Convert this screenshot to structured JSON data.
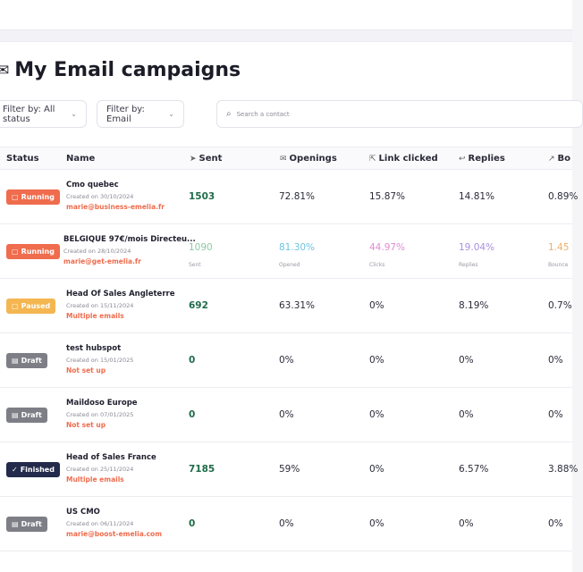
{
  "page_title": "My Email campaigns",
  "filters": {
    "status": "Filter by: All status",
    "email": "Filter by: Email"
  },
  "search": {
    "placeholder": "Search a contact"
  },
  "columns": {
    "status": "Status",
    "name": "Name",
    "sent": "Sent",
    "openings": "Openings",
    "link_clicked": "Link clicked",
    "replies": "Replies",
    "bounces": "Bo"
  },
  "rows": [
    {
      "status": "Running",
      "status_kind": "running",
      "name": "Cmo quebec",
      "created": "Created on 30/10/2024",
      "email": "marie@business-emelia.fr",
      "sent": "1503",
      "openings": "72.81%",
      "link_clicked": "15.87%",
      "replies": "14.81%",
      "bounces": "0.89%"
    },
    {
      "status": "Running",
      "status_kind": "running",
      "name": "BELGIQUE 97€/mois Directeu...",
      "created": "Created on 28/10/2024",
      "email": "marie@get-emelia.fr",
      "sent": "1090",
      "openings": "81.30%",
      "link_clicked": "44.97%",
      "replies": "19.04%",
      "bounces": "1.45",
      "sent_sub": "Sent",
      "openings_sub": "Opened",
      "link_sub": "Clicks",
      "replies_sub": "Replies",
      "bounces_sub": "Bounce"
    },
    {
      "status": "Paused",
      "status_kind": "paused",
      "name": "Head Of Sales Angleterre",
      "created": "Created on 15/11/2024",
      "email": "Multiple emails",
      "sent": "692",
      "openings": "63.31%",
      "link_clicked": "0%",
      "replies": "8.19%",
      "bounces": "0.7%"
    },
    {
      "status": "Draft",
      "status_kind": "draft",
      "name": "test hubspot",
      "created": "Created on 15/01/2025",
      "email": "Not set up",
      "sent": "0",
      "openings": "0%",
      "link_clicked": "0%",
      "replies": "0%",
      "bounces": "0%"
    },
    {
      "status": "Draft",
      "status_kind": "draft",
      "name": "Maildoso Europe",
      "created": "Created on 07/01/2025",
      "email": "Not set up",
      "sent": "0",
      "openings": "0%",
      "link_clicked": "0%",
      "replies": "0%",
      "bounces": "0%"
    },
    {
      "status": "Finished",
      "status_kind": "finished",
      "name": "Head of Sales France",
      "created": "Created on 25/11/2024",
      "email": "Multiple emails",
      "sent": "7185",
      "openings": "59%",
      "link_clicked": "0%",
      "replies": "6.57%",
      "bounces": "3.88%"
    },
    {
      "status": "Draft",
      "status_kind": "draft",
      "name": "US CMO",
      "created": "Created on 06/11/2024",
      "email": "marie@boost-emelia.com",
      "sent": "0",
      "openings": "0%",
      "link_clicked": "0%",
      "replies": "0%",
      "bounces": "0%"
    }
  ],
  "colors": {
    "running": "#ef6c4d",
    "paused": "#f4b651",
    "draft": "#7e7e86",
    "finished": "#232a4b",
    "accent": "#ef6c4d",
    "faded_sent": "#8fc7a4",
    "faded_openings": "#6ec3e0",
    "faded_link": "#e08bd6",
    "faded_replies": "#a98fe0",
    "faded_bounces": "#f0b066"
  }
}
